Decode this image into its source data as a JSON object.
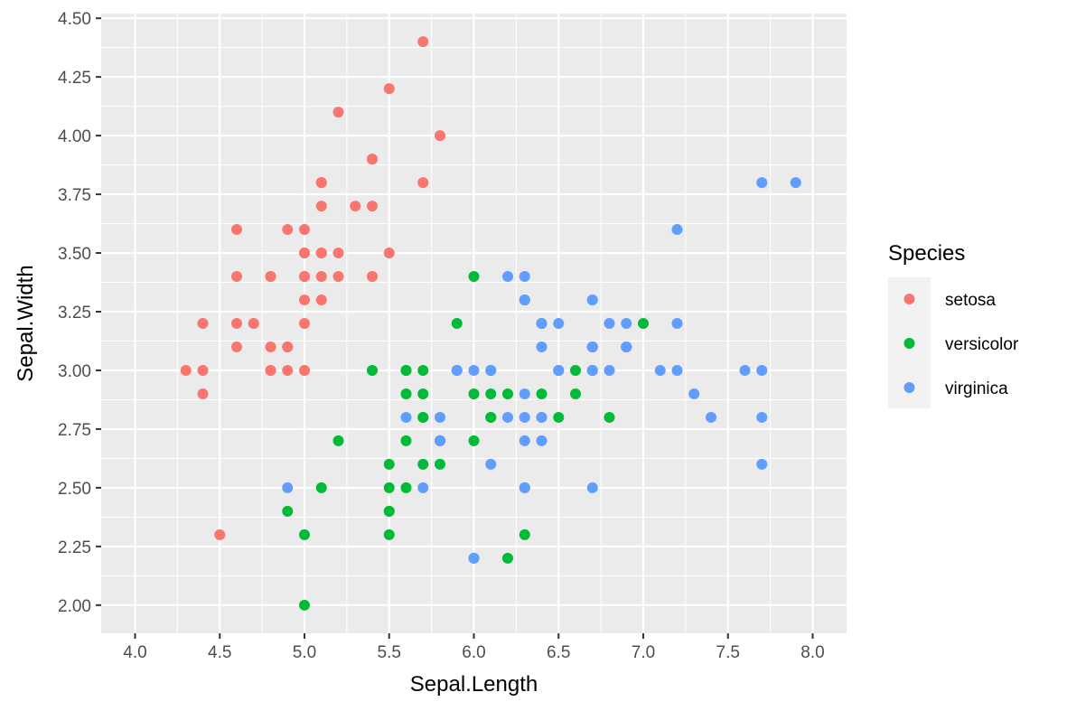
{
  "chart_data": {
    "type": "scatter",
    "xlabel": "Sepal.Length",
    "ylabel": "Sepal.Width",
    "xlim": [
      3.8,
      8.2
    ],
    "ylim": [
      1.88,
      4.52
    ],
    "x_ticks": [
      4.0,
      4.5,
      5.0,
      5.5,
      6.0,
      6.5,
      7.0,
      7.5,
      8.0
    ],
    "x_tick_labels": [
      "4.0",
      "4.5",
      "5.0",
      "5.5",
      "6.0",
      "6.5",
      "7.0",
      "7.5",
      "8.0"
    ],
    "y_ticks": [
      2.0,
      2.25,
      2.5,
      2.75,
      3.0,
      3.25,
      3.5,
      3.75,
      4.0,
      4.25,
      4.5
    ],
    "y_tick_labels": [
      "2.00",
      "2.25",
      "2.50",
      "2.75",
      "3.00",
      "3.25",
      "3.50",
      "3.75",
      "4.00",
      "4.25",
      "4.50"
    ],
    "grid": true,
    "legend": {
      "title": "Species",
      "position": "right"
    },
    "series": [
      {
        "name": "setosa",
        "color": "#F8766D",
        "points": [
          [
            5.1,
            3.5
          ],
          [
            4.9,
            3.0
          ],
          [
            4.7,
            3.2
          ],
          [
            4.6,
            3.1
          ],
          [
            5.0,
            3.6
          ],
          [
            5.4,
            3.9
          ],
          [
            4.6,
            3.4
          ],
          [
            5.0,
            3.4
          ],
          [
            4.4,
            2.9
          ],
          [
            4.9,
            3.1
          ],
          [
            5.4,
            3.7
          ],
          [
            4.8,
            3.4
          ],
          [
            4.8,
            3.0
          ],
          [
            4.3,
            3.0
          ],
          [
            5.8,
            4.0
          ],
          [
            5.7,
            4.4
          ],
          [
            5.4,
            3.9
          ],
          [
            5.1,
            3.5
          ],
          [
            5.7,
            3.8
          ],
          [
            5.1,
            3.8
          ],
          [
            5.4,
            3.4
          ],
          [
            5.1,
            3.7
          ],
          [
            4.6,
            3.6
          ],
          [
            5.1,
            3.3
          ],
          [
            4.8,
            3.4
          ],
          [
            5.0,
            3.0
          ],
          [
            5.0,
            3.4
          ],
          [
            5.2,
            3.5
          ],
          [
            5.2,
            3.4
          ],
          [
            4.7,
            3.2
          ],
          [
            4.8,
            3.1
          ],
          [
            5.4,
            3.4
          ],
          [
            5.2,
            4.1
          ],
          [
            5.5,
            4.2
          ],
          [
            4.9,
            3.1
          ],
          [
            5.0,
            3.2
          ],
          [
            5.5,
            3.5
          ],
          [
            4.9,
            3.6
          ],
          [
            4.4,
            3.0
          ],
          [
            5.1,
            3.4
          ],
          [
            5.0,
            3.5
          ],
          [
            4.5,
            2.3
          ],
          [
            4.4,
            3.2
          ],
          [
            5.0,
            3.5
          ],
          [
            5.1,
            3.8
          ],
          [
            4.8,
            3.0
          ],
          [
            5.1,
            3.8
          ],
          [
            4.6,
            3.2
          ],
          [
            5.3,
            3.7
          ],
          [
            5.0,
            3.3
          ]
        ]
      },
      {
        "name": "versicolor",
        "color": "#00BA38",
        "points": [
          [
            7.0,
            3.2
          ],
          [
            6.4,
            3.2
          ],
          [
            6.9,
            3.1
          ],
          [
            5.5,
            2.3
          ],
          [
            6.5,
            2.8
          ],
          [
            5.7,
            2.8
          ],
          [
            6.3,
            3.3
          ],
          [
            4.9,
            2.4
          ],
          [
            6.6,
            2.9
          ],
          [
            5.2,
            2.7
          ],
          [
            5.0,
            2.0
          ],
          [
            5.9,
            3.0
          ],
          [
            6.0,
            2.2
          ],
          [
            6.1,
            2.9
          ],
          [
            5.6,
            2.9
          ],
          [
            6.7,
            3.1
          ],
          [
            5.6,
            3.0
          ],
          [
            5.8,
            2.7
          ],
          [
            6.2,
            2.2
          ],
          [
            5.6,
            2.5
          ],
          [
            5.9,
            3.2
          ],
          [
            6.1,
            2.8
          ],
          [
            6.3,
            2.5
          ],
          [
            6.1,
            2.8
          ],
          [
            6.4,
            2.9
          ],
          [
            6.6,
            3.0
          ],
          [
            6.8,
            2.8
          ],
          [
            6.7,
            3.0
          ],
          [
            6.0,
            2.9
          ],
          [
            5.7,
            2.6
          ],
          [
            5.5,
            2.4
          ],
          [
            5.5,
            2.4
          ],
          [
            5.8,
            2.7
          ],
          [
            6.0,
            2.7
          ],
          [
            5.4,
            3.0
          ],
          [
            6.0,
            3.4
          ],
          [
            6.7,
            3.1
          ],
          [
            6.3,
            2.3
          ],
          [
            5.6,
            3.0
          ],
          [
            5.5,
            2.5
          ],
          [
            5.5,
            2.6
          ],
          [
            6.1,
            3.0
          ],
          [
            5.8,
            2.6
          ],
          [
            5.0,
            2.3
          ],
          [
            5.6,
            2.7
          ],
          [
            5.7,
            3.0
          ],
          [
            5.7,
            2.9
          ],
          [
            6.2,
            2.9
          ],
          [
            5.1,
            2.5
          ],
          [
            5.7,
            2.8
          ]
        ]
      },
      {
        "name": "virginica",
        "color": "#619CFF",
        "points": [
          [
            6.3,
            3.3
          ],
          [
            5.8,
            2.7
          ],
          [
            7.1,
            3.0
          ],
          [
            6.3,
            2.9
          ],
          [
            6.5,
            3.0
          ],
          [
            7.6,
            3.0
          ],
          [
            4.9,
            2.5
          ],
          [
            7.3,
            2.9
          ],
          [
            6.7,
            2.5
          ],
          [
            7.2,
            3.6
          ],
          [
            6.5,
            3.2
          ],
          [
            6.4,
            2.7
          ],
          [
            6.8,
            3.0
          ],
          [
            5.7,
            2.5
          ],
          [
            5.8,
            2.8
          ],
          [
            6.4,
            3.2
          ],
          [
            6.5,
            3.0
          ],
          [
            7.7,
            3.8
          ],
          [
            7.7,
            2.6
          ],
          [
            6.0,
            2.2
          ],
          [
            6.9,
            3.2
          ],
          [
            5.6,
            2.8
          ],
          [
            7.7,
            2.8
          ],
          [
            6.3,
            2.7
          ],
          [
            6.7,
            3.3
          ],
          [
            7.2,
            3.2
          ],
          [
            6.2,
            2.8
          ],
          [
            6.1,
            3.0
          ],
          [
            6.4,
            2.8
          ],
          [
            7.2,
            3.0
          ],
          [
            7.4,
            2.8
          ],
          [
            7.9,
            3.8
          ],
          [
            6.4,
            2.8
          ],
          [
            6.3,
            2.8
          ],
          [
            6.1,
            2.6
          ],
          [
            7.7,
            3.0
          ],
          [
            6.3,
            3.4
          ],
          [
            6.4,
            3.1
          ],
          [
            6.0,
            3.0
          ],
          [
            6.9,
            3.1
          ],
          [
            6.7,
            3.1
          ],
          [
            6.9,
            3.1
          ],
          [
            5.8,
            2.7
          ],
          [
            6.8,
            3.2
          ],
          [
            6.7,
            3.3
          ],
          [
            6.7,
            3.0
          ],
          [
            6.3,
            2.5
          ],
          [
            6.5,
            3.0
          ],
          [
            6.2,
            3.4
          ],
          [
            5.9,
            3.0
          ]
        ]
      }
    ]
  }
}
